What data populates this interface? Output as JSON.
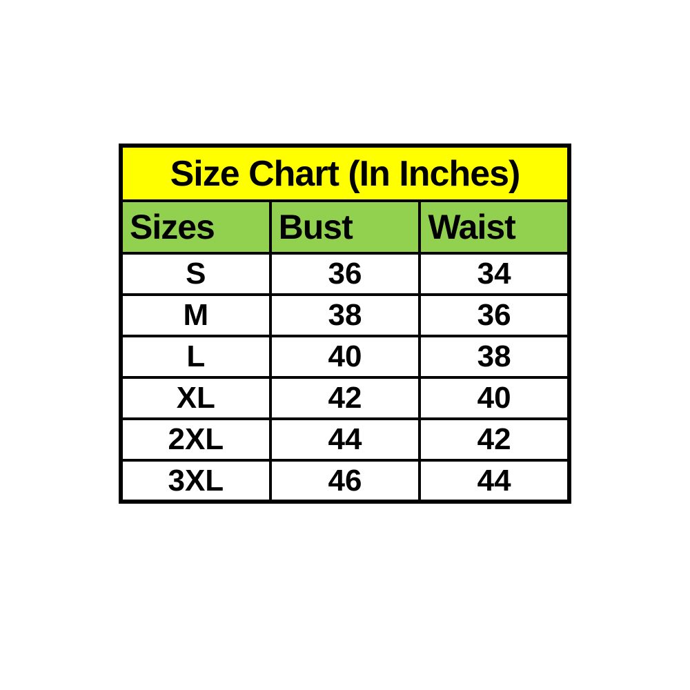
{
  "colors": {
    "title-bg": "#ffff00",
    "header-bg": "#92d050",
    "row-bg": "#ffffff",
    "border-color": "#000000",
    "text-color": "#000000",
    "page-bg": "#ffffff"
  },
  "chart_data": {
    "type": "table",
    "title": "Size Chart (In Inches)",
    "columns": [
      "Sizes",
      "Bust",
      "Waist"
    ],
    "rows": [
      [
        "S",
        "36",
        "34"
      ],
      [
        "M",
        "38",
        "36"
      ],
      [
        "L",
        "40",
        "38"
      ],
      [
        "XL",
        "42",
        "40"
      ],
      [
        "2XL",
        "44",
        "42"
      ],
      [
        "3XL",
        "46",
        "44"
      ]
    ],
    "layout": {
      "title_align": "center",
      "header_align": "left",
      "data_align": "center",
      "grid": true
    }
  }
}
